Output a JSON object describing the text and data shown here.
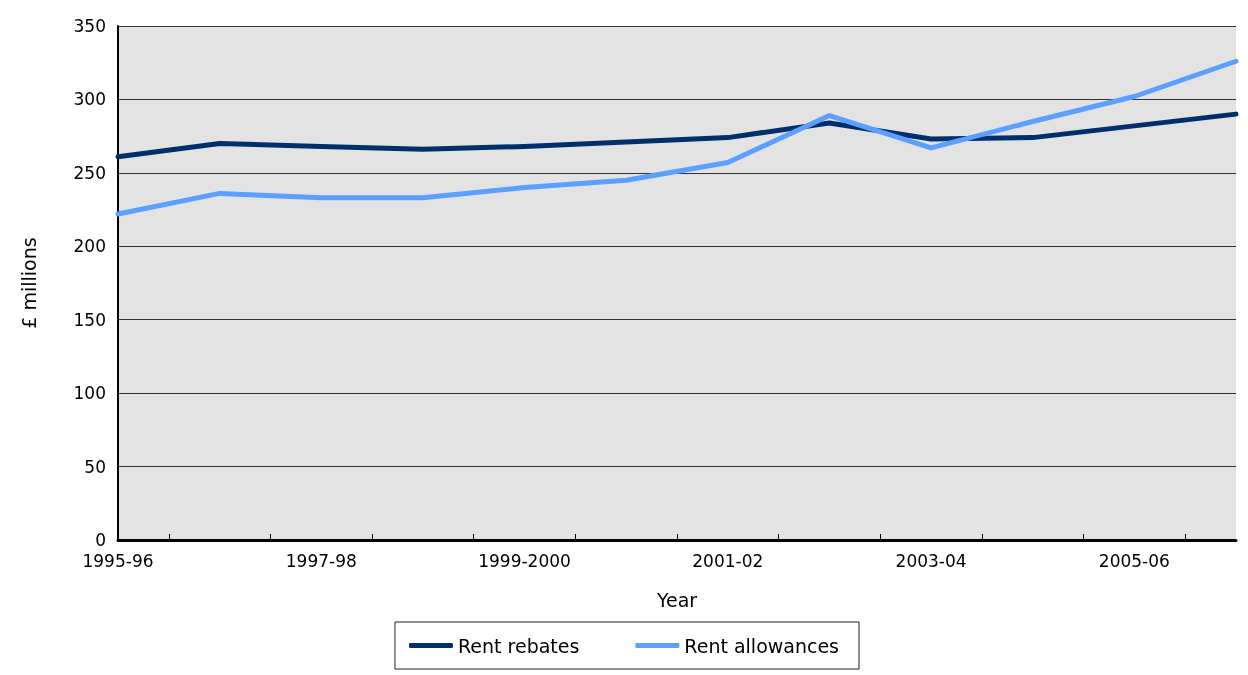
{
  "chart_data": {
    "type": "line",
    "xlabel": "Year",
    "ylabel": "£ millions",
    "categories": [
      "1995-96",
      null,
      "1997-98",
      null,
      "1999-2000",
      null,
      "2001-02",
      null,
      "2003-04",
      null,
      "2005-06",
      null
    ],
    "series": [
      {
        "name": "Rent rebates",
        "color": "#002f6c",
        "values": [
          261,
          270,
          268,
          266,
          268,
          271,
          274,
          284,
          273,
          274,
          282,
          290
        ]
      },
      {
        "name": "Rent allowances",
        "color": "#5ca0ff",
        "values": [
          222,
          236,
          233,
          233,
          240,
          245,
          257,
          289,
          267,
          285,
          302,
          326
        ]
      }
    ],
    "ylim": [
      0,
      350
    ],
    "yticks": [
      0,
      50,
      100,
      150,
      200,
      250,
      300,
      350
    ],
    "grid": "y",
    "legend": "bottom",
    "marker": "none",
    "line_style": "solid"
  }
}
